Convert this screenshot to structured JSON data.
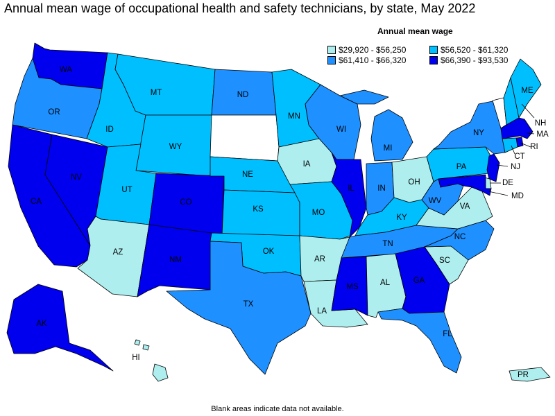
{
  "title": "Annual mean wage of occupational health and safety technicians, by state, May 2022",
  "legend": {
    "title": "Annual mean wage",
    "items": [
      {
        "label": "$29,920 - $56,250",
        "color": "#aeeeee"
      },
      {
        "label": "$56,520 - $61,320",
        "color": "#00bfff"
      },
      {
        "label": "$61,410 - $66,320",
        "color": "#1e90ff"
      },
      {
        "label": "$66,390 - $93,530",
        "color": "#0000ee"
      }
    ]
  },
  "footnote": "Blank areas indicate data not available.",
  "colors": {
    "no_data": "#ffffff",
    "border": "#000000"
  },
  "states": {
    "WA": {
      "label": "WA",
      "wage_range": 3
    },
    "OR": {
      "label": "OR",
      "wage_range": 2
    },
    "CA": {
      "label": "CA",
      "wage_range": 3
    },
    "NV": {
      "label": "NV",
      "wage_range": 3
    },
    "ID": {
      "label": "ID",
      "wage_range": 1
    },
    "MT": {
      "label": "MT",
      "wage_range": 1
    },
    "WY": {
      "label": "WY",
      "wage_range": 1
    },
    "UT": {
      "label": "UT",
      "wage_range": 1
    },
    "AZ": {
      "label": "AZ",
      "wage_range": 0
    },
    "CO": {
      "label": "CO",
      "wage_range": 3
    },
    "NM": {
      "label": "NM",
      "wage_range": 3
    },
    "ND": {
      "label": "ND",
      "wage_range": 2
    },
    "SD": {
      "label": "",
      "wage_range": null
    },
    "NE": {
      "label": "NE",
      "wage_range": 1
    },
    "KS": {
      "label": "KS",
      "wage_range": 1
    },
    "OK": {
      "label": "OK",
      "wage_range": 1
    },
    "TX": {
      "label": "TX",
      "wage_range": 2
    },
    "MN": {
      "label": "MN",
      "wage_range": 1
    },
    "IA": {
      "label": "IA",
      "wage_range": 0
    },
    "MO": {
      "label": "MO",
      "wage_range": 1
    },
    "AR": {
      "label": "AR",
      "wage_range": 0
    },
    "LA": {
      "label": "LA",
      "wage_range": 0
    },
    "WI": {
      "label": "WI",
      "wage_range": 2
    },
    "IL": {
      "label": "IL",
      "wage_range": 3
    },
    "MI": {
      "label": "MI",
      "wage_range": 2
    },
    "IN": {
      "label": "IN",
      "wage_range": 2
    },
    "OH": {
      "label": "OH",
      "wage_range": 0
    },
    "KY": {
      "label": "KY",
      "wage_range": 1
    },
    "TN": {
      "label": "TN",
      "wage_range": 2
    },
    "MS": {
      "label": "MS",
      "wage_range": 3
    },
    "AL": {
      "label": "AL",
      "wage_range": 0
    },
    "GA": {
      "label": "GA",
      "wage_range": 3
    },
    "FL": {
      "label": "FL",
      "wage_range": 2
    },
    "SC": {
      "label": "SC",
      "wage_range": 0
    },
    "NC": {
      "label": "NC",
      "wage_range": 2
    },
    "VA": {
      "label": "VA",
      "wage_range": 0
    },
    "WV": {
      "label": "WV",
      "wage_range": 2
    },
    "PA": {
      "label": "PA",
      "wage_range": 1
    },
    "NY": {
      "label": "NY",
      "wage_range": 2
    },
    "VT": {
      "label": "",
      "wage_range": null
    },
    "NH": {
      "label": "NH",
      "wage_range": 1
    },
    "ME": {
      "label": "ME",
      "wage_range": 1
    },
    "MA": {
      "label": "MA",
      "wage_range": 3
    },
    "RI": {
      "label": "RI",
      "wage_range": 3
    },
    "CT": {
      "label": "CT",
      "wage_range": 1
    },
    "NJ": {
      "label": "NJ",
      "wage_range": 3
    },
    "DE": {
      "label": "DE",
      "wage_range": 0
    },
    "MD": {
      "label": "MD",
      "wage_range": 3
    },
    "AK": {
      "label": "AK",
      "wage_range": 3
    },
    "HI": {
      "label": "HI",
      "wage_range": 0
    },
    "PR": {
      "label": "PR",
      "wage_range": 0
    }
  }
}
